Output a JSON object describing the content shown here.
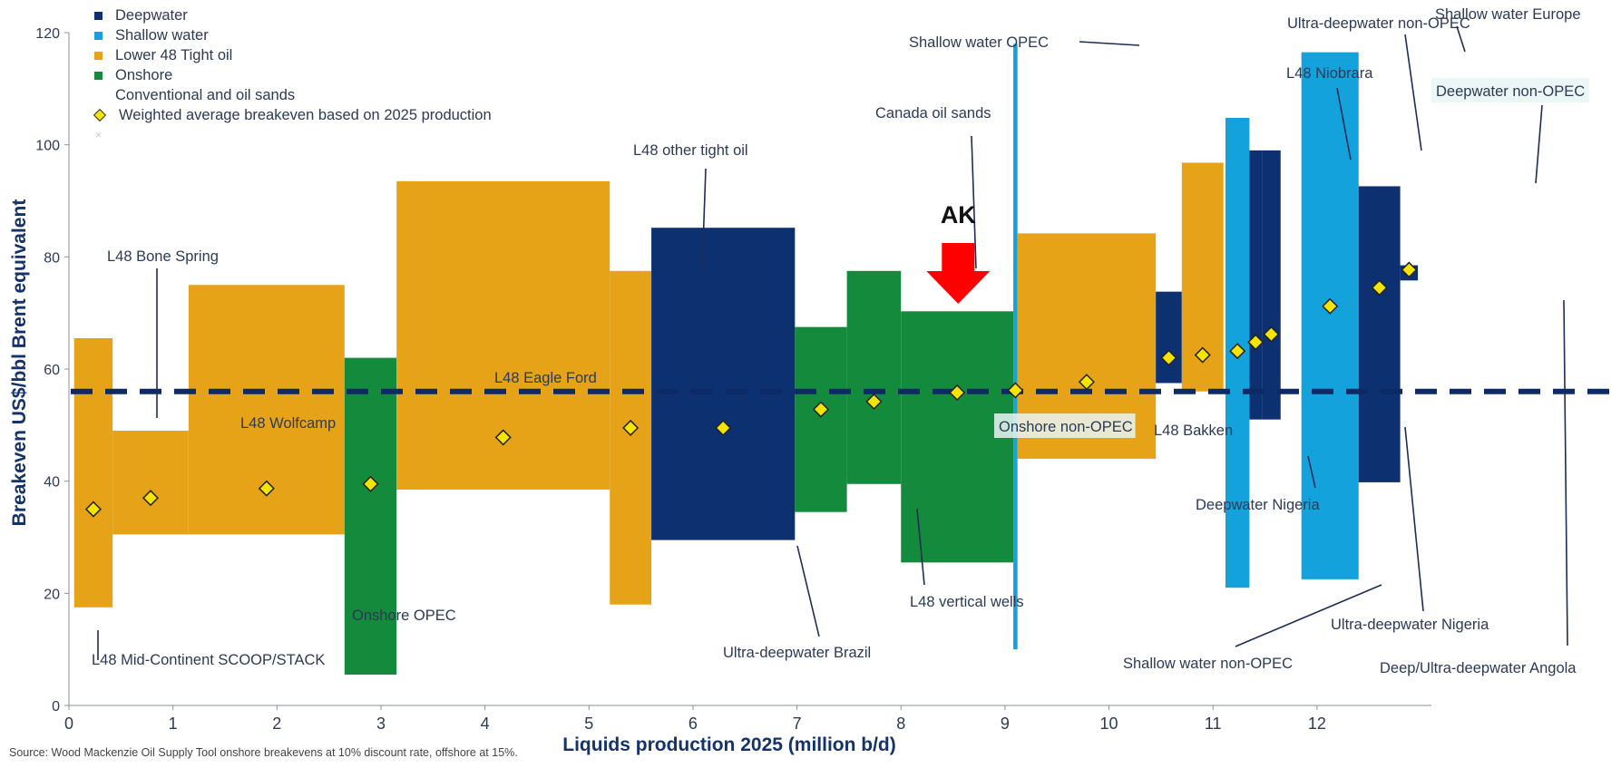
{
  "chart_data": {
    "type": "bar",
    "xlabel": "Liquids production 2025 (million b/d)",
    "ylabel": "Breakeven US$/bbl Brent equivalent",
    "xlim": [
      0,
      13.1
    ],
    "ylim": [
      0,
      120
    ],
    "x_ticks": [
      0,
      1,
      2,
      3,
      4,
      5,
      6,
      7,
      8,
      9,
      10,
      11,
      12
    ],
    "y_ticks": [
      0,
      20,
      40,
      60,
      80,
      100,
      120
    ],
    "source": "Source: Wood Mackenzie Oil Supply Tool onshore breakevens at 10% discount rate, offshore at 15%.",
    "annotation": "AK",
    "annotation_x": 8.55,
    "weighted_average_line": 56,
    "colors": {
      "Deepwater": "#0d3170",
      "Shallow water": "#13a2dc",
      "Lower 48 Tight oil": "#e6a318",
      "Onshore": "#148a3c",
      "average_line": "#0d2a66",
      "marker": "#f5e300",
      "arrow": "#ff0000",
      "text": "#2b3a55"
    },
    "legend": [
      {
        "label": "Deepwater",
        "kind": "square",
        "category": "Deepwater"
      },
      {
        "label": "Shallow water",
        "kind": "square",
        "category": "Shallow water"
      },
      {
        "label": "Lower 48 Tight oil",
        "kind": "square",
        "category": "Lower 48 Tight oil"
      },
      {
        "label": "Onshore",
        "kind": "square",
        "category": "Onshore"
      },
      {
        "label": "Conventional and oil sands",
        "kind": "none"
      },
      {
        "label": "Weighted average breakeven based on 2025 production",
        "kind": "diamond"
      },
      {
        "label": "",
        "kind": "cross"
      }
    ],
    "segments": [
      {
        "name": "L48 Mid-Continent SCOOP/STACK",
        "category": "Lower 48 Tight oil",
        "x0": 0.05,
        "x1": 0.42,
        "low": 17.5,
        "high": 65.5,
        "avg": 35
      },
      {
        "name": "L48 Bone Spring",
        "category": "Lower 48 Tight oil",
        "x0": 0.42,
        "x1": 1.15,
        "low": 30.5,
        "high": 49,
        "avg": 37
      },
      {
        "name": "L48 Wolfcamp",
        "category": "Lower 48 Tight oil",
        "x0": 1.15,
        "x1": 2.65,
        "low": 30.5,
        "high": 75,
        "avg": 38.7
      },
      {
        "name": "Onshore OPEC",
        "category": "Onshore",
        "x0": 2.65,
        "x1": 3.15,
        "low": 5.5,
        "high": 62,
        "avg": 39.5
      },
      {
        "name": "L48 Eagle Ford",
        "category": "Lower 48 Tight oil",
        "x0": 3.15,
        "x1": 5.2,
        "low": 38.5,
        "high": 93.5,
        "avg": 47.8
      },
      {
        "name": "L48 other tight oil",
        "category": "Lower 48 Tight oil",
        "x0": 5.2,
        "x1": 5.6,
        "low": 18,
        "high": 77.5,
        "avg": 49.5
      },
      {
        "name": "Ultra-deepwater Brazil",
        "category": "Deepwater",
        "x0": 5.6,
        "x1": 6.98,
        "low": 29.5,
        "high": 85.2,
        "avg": 49.5
      },
      {
        "name": "L48 vertical wells",
        "category": "Onshore",
        "x0": 6.98,
        "x1": 7.48,
        "low": 34.5,
        "high": 67.5,
        "avg": 52.8
      },
      {
        "name": "Canada oil sands",
        "category": "Onshore",
        "x0": 7.48,
        "x1": 8.0,
        "low": 39.5,
        "high": 77.5,
        "avg": 54.2
      },
      {
        "name": "Onshore non-OPEC",
        "category": "Onshore",
        "x0": 8.0,
        "x1": 9.08,
        "low": 25.5,
        "high": 70.3,
        "avg": 55.8
      },
      {
        "name": "Shallow water OPEC",
        "category": "Shallow water",
        "x0": 9.08,
        "x1": 9.12,
        "low": 10,
        "high": 118,
        "avg": 56.2
      },
      {
        "name": "L48 Bakken",
        "category": "Lower 48 Tight oil",
        "x0": 9.12,
        "x1": 10.45,
        "low": 44,
        "high": 84.2,
        "avg": 57.7
      },
      {
        "name": "Deepwater Nigeria",
        "category": "Deepwater",
        "x0": 10.45,
        "x1": 10.7,
        "low": 57.5,
        "high": 73.8,
        "avg": 62
      },
      {
        "name": "L48 Niobrara",
        "category": "Lower 48 Tight oil",
        "x0": 10.7,
        "x1": 11.1,
        "low": 56,
        "high": 96.8,
        "avg": 62.5
      },
      {
        "name": "Shallow water non-OPEC",
        "category": "Shallow water",
        "x0": 11.12,
        "x1": 11.35,
        "low": 21,
        "high": 104.8,
        "avg": 63.2
      },
      {
        "name": "Ultra-deepwater Nigeria",
        "category": "Deepwater",
        "x0": 11.35,
        "x1": 11.47,
        "low": 51,
        "high": 99,
        "avg": 64.8
      },
      {
        "name": "Ultra-deepwater non-OPEC",
        "category": "Deepwater",
        "x0": 11.47,
        "x1": 11.65,
        "low": 51,
        "high": 99,
        "avg": 66.2
      },
      {
        "name": "Shallow water Europe",
        "category": "Shallow water",
        "x0": 11.85,
        "x1": 12.4,
        "low": 22.5,
        "high": 116.5,
        "avg": 71.2
      },
      {
        "name": "Deepwater non-OPEC",
        "category": "Deepwater",
        "x0": 12.4,
        "x1": 12.8,
        "low": 39.8,
        "high": 92.6,
        "avg": 74.5
      },
      {
        "name": "Deep/Ultra-deepwater Angola",
        "category": "Deepwater",
        "x0": 12.8,
        "x1": 12.97,
        "low": 75.8,
        "high": 78.5,
        "avg": 77.7
      }
    ]
  }
}
